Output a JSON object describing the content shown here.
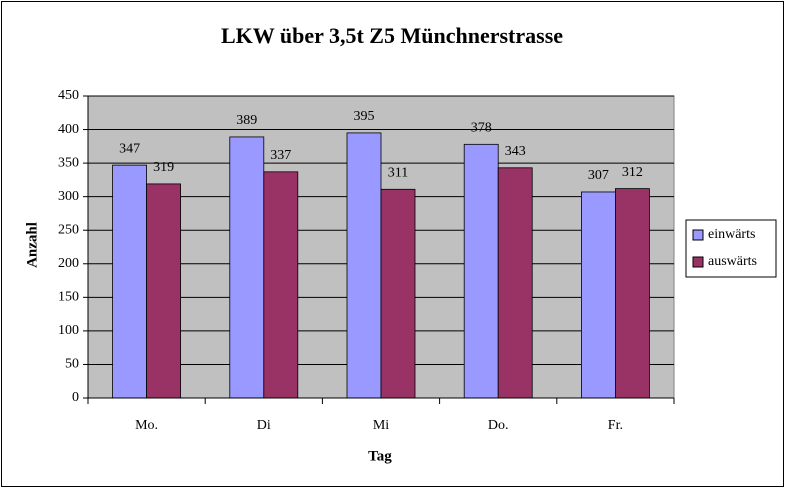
{
  "chart_data": {
    "type": "bar",
    "title": "LKW über 3,5t Z5 Münchnerstrasse",
    "x_label": "Tag",
    "y_label": "Anzahl",
    "categories": [
      "Mo.",
      "Di",
      "Mi",
      "Do.",
      "Fr."
    ],
    "series": [
      {
        "name": "einwärts",
        "color": "#9999ff",
        "values": [
          347,
          389,
          395,
          378,
          307
        ]
      },
      {
        "name": "auswärts",
        "color": "#993366",
        "values": [
          319,
          337,
          311,
          343,
          312
        ]
      }
    ],
    "ylim": [
      0,
      450
    ],
    "yticks": [
      0,
      50,
      100,
      150,
      200,
      250,
      300,
      350,
      400,
      450
    ],
    "grid": true,
    "legend": "right",
    "plot_background": "#c0c0c0"
  }
}
